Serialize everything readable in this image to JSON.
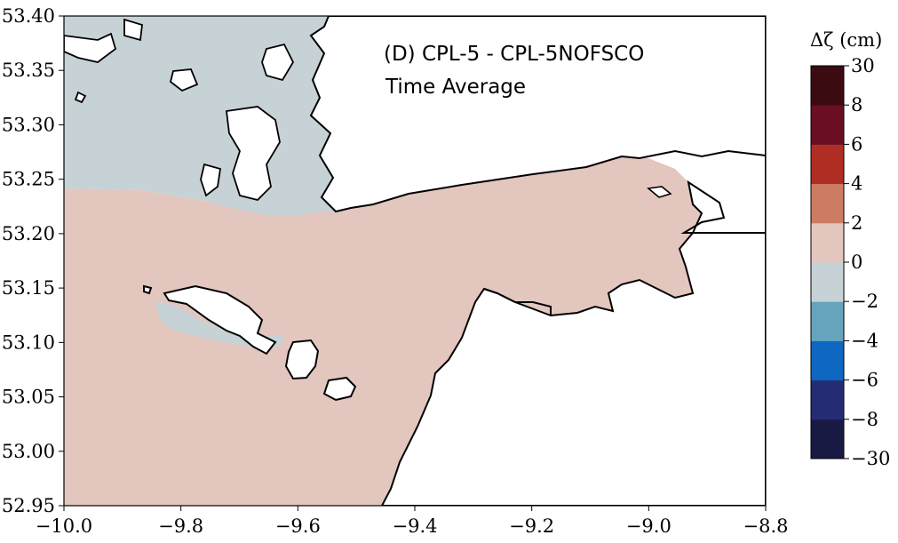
{
  "chart_data": [
    {
      "type": "heatmap",
      "title": "(D) CPL-5 - CPL-5NOFSCO",
      "subtitle": "Time Average",
      "xlabel": "",
      "ylabel": "",
      "xlim": [
        -10.0,
        -8.8
      ],
      "ylim": [
        52.95,
        53.4
      ],
      "x_ticks": [
        -10.0,
        -9.8,
        -9.6,
        -9.4,
        -9.2,
        -9.0,
        -8.8
      ],
      "x_tick_labels": [
        "−10.0",
        "−9.8",
        "−9.6",
        "−9.4",
        "−9.2",
        "−9.0",
        "−8.8"
      ],
      "y_ticks": [
        52.95,
        53.0,
        53.05,
        53.1,
        53.15,
        53.2,
        53.25,
        53.3,
        53.35,
        53.4
      ],
      "y_tick_labels": [
        "52.95",
        "53.00",
        "53.05",
        "53.10",
        "53.15",
        "53.20",
        "53.25",
        "53.30",
        "53.35",
        "53.40"
      ],
      "grid": false,
      "dominant_class": "0 to 2",
      "regions": [
        {
          "name": "0 to 2",
          "description": "most of the bay and open water"
        },
        {
          "name": "−2 to 0",
          "description": "northwest channel area and patch south of the island"
        }
      ]
    },
    {
      "type": "colorbar",
      "label": "Δζ (cm)",
      "bins": [
        {
          "from": -30,
          "to": -8,
          "color": "#181a44"
        },
        {
          "from": -8,
          "to": -6,
          "color": "#242c74"
        },
        {
          "from": -6,
          "to": -4,
          "color": "#0e67c0"
        },
        {
          "from": -4,
          "to": -2,
          "color": "#66a4bd"
        },
        {
          "from": -2,
          "to": 0,
          "color": "#c6d2d6"
        },
        {
          "from": 0,
          "to": 2,
          "color": "#e3c6be"
        },
        {
          "from": 2,
          "to": 4,
          "color": "#cd7c64"
        },
        {
          "from": 4,
          "to": 6,
          "color": "#b02d24"
        },
        {
          "from": 6,
          "to": 8,
          "color": "#6a0f22"
        },
        {
          "from": 8,
          "to": 30,
          "color": "#3c0b12"
        }
      ],
      "tick_labels": [
        "−30",
        "−8",
        "−6",
        "−4",
        "−2",
        "0",
        "2",
        "4",
        "6",
        "8",
        "30"
      ]
    }
  ],
  "colors": {
    "positive_fill": "#e3c6be",
    "negative_fill": "#c6d2d6",
    "land": "#ffffff",
    "coastline": "#000000"
  }
}
